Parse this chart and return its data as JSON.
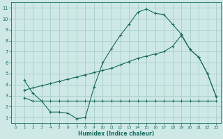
{
  "title": "",
  "xlabel": "Humidex (Indice chaleur)",
  "ylabel": "",
  "background_color": "#cde8e5",
  "grid_color": "#a8ceca",
  "line_color": "#1a6b60",
  "xlim": [
    -0.5,
    23.5
  ],
  "ylim": [
    0.5,
    11.5
  ],
  "xticks": [
    0,
    1,
    2,
    3,
    4,
    5,
    6,
    7,
    8,
    9,
    10,
    11,
    12,
    13,
    14,
    15,
    16,
    17,
    18,
    19,
    20,
    21,
    22,
    23
  ],
  "yticks": [
    1,
    2,
    3,
    4,
    5,
    6,
    7,
    8,
    9,
    10,
    11
  ],
  "curve1_x": [
    1,
    2,
    3,
    4,
    5,
    6,
    7,
    8,
    9,
    10,
    11,
    12,
    13,
    14,
    15,
    16,
    17,
    18,
    19,
    20,
    21,
    22,
    23
  ],
  "curve1_y": [
    4.4,
    3.2,
    2.5,
    1.5,
    1.5,
    1.4,
    0.9,
    1.0,
    3.8,
    6.0,
    7.3,
    8.5,
    9.5,
    10.6,
    10.9,
    10.5,
    10.4,
    9.5,
    8.6,
    7.2,
    6.5,
    5.0,
    2.9
  ],
  "curve2_x": [
    1,
    2,
    3,
    4,
    5,
    6,
    7,
    8,
    9,
    10,
    11,
    12,
    13,
    14,
    15,
    16,
    17,
    18,
    19,
    20,
    21,
    22,
    23
  ],
  "curve2_y": [
    2.8,
    2.5,
    2.5,
    2.5,
    2.5,
    2.5,
    2.5,
    2.5,
    2.5,
    2.5,
    2.5,
    2.5,
    2.5,
    2.5,
    2.5,
    2.5,
    2.5,
    2.5,
    2.5,
    2.5,
    2.5,
    2.5,
    2.5
  ],
  "curve3_x": [
    1,
    2,
    3,
    4,
    5,
    6,
    7,
    8,
    9,
    10,
    11,
    12,
    13,
    14,
    15,
    16,
    17,
    18,
    19,
    20,
    21,
    22,
    23
  ],
  "curve3_y": [
    3.5,
    3.7,
    3.9,
    4.1,
    4.3,
    4.5,
    4.7,
    4.9,
    5.1,
    5.3,
    5.5,
    5.8,
    6.1,
    6.4,
    6.6,
    6.8,
    7.0,
    7.5,
    8.5,
    7.2,
    6.5,
    5.0,
    2.9
  ]
}
